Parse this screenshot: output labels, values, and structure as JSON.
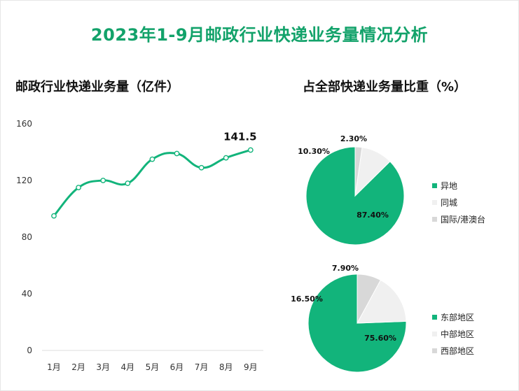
{
  "title": "2023年1-9月邮政行业快递业务量情况分析",
  "colors": {
    "primary": "#12b47b",
    "secondary": "#f0f0f0",
    "tertiary": "#d8d8d8",
    "title": "#12a26a"
  },
  "chart_data": [
    {
      "type": "line",
      "title": "邮政行业快递业务量（亿件）",
      "categories": [
        "1月",
        "2月",
        "3月",
        "4月",
        "5月",
        "6月",
        "7月",
        "8月",
        "9月"
      ],
      "values": [
        95,
        115,
        120,
        118,
        135,
        139,
        129,
        136,
        141.5
      ],
      "ylim": [
        0,
        160
      ],
      "yticks": [
        "0",
        "40",
        "80",
        "120",
        "160"
      ],
      "callout": {
        "index": 8,
        "label": "141.5"
      },
      "grid": false
    },
    {
      "type": "pie",
      "title": "占全部快递业务量比重（%）",
      "slices": [
        {
          "name": "异地",
          "value": 87.4,
          "label": "87.40%"
        },
        {
          "name": "同城",
          "value": 10.3,
          "label": "10.30%"
        },
        {
          "name": "国际/港澳台",
          "value": 2.3,
          "label": "2.30%"
        }
      ],
      "legend_position": "right"
    },
    {
      "type": "pie",
      "slices": [
        {
          "name": "东部地区",
          "value": 75.6,
          "label": "75.60%"
        },
        {
          "name": "中部地区",
          "value": 16.5,
          "label": "16.50%"
        },
        {
          "name": "西部地区",
          "value": 7.9,
          "label": "7.90%"
        }
      ],
      "legend_position": "right"
    }
  ]
}
